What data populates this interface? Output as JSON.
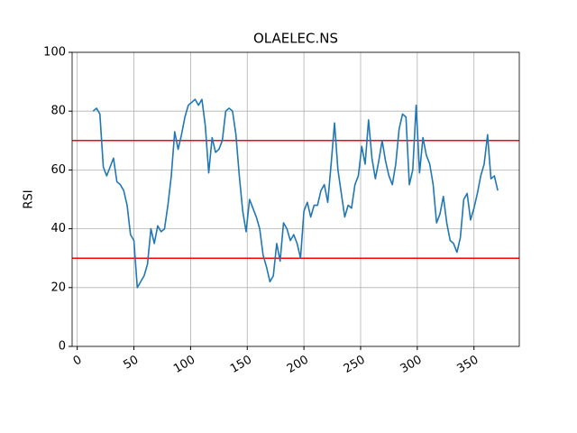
{
  "chart_data": {
    "type": "line",
    "title": "OLAELEC.NS",
    "y_label": "RSI",
    "x": [
      14,
      17,
      20,
      23,
      26,
      29,
      32,
      35,
      38,
      41,
      44,
      47,
      50,
      53,
      56,
      59,
      62,
      65,
      68,
      71,
      74,
      77,
      80,
      83,
      86,
      89,
      92,
      95,
      98,
      101,
      104,
      107,
      110,
      113,
      116,
      119,
      122,
      125,
      128,
      131,
      134,
      137,
      140,
      143,
      146,
      149,
      152,
      155,
      158,
      161,
      164,
      167,
      170,
      173,
      176,
      179,
      182,
      185,
      188,
      191,
      194,
      197,
      200,
      203,
      206,
      209,
      212,
      215,
      218,
      221,
      224,
      227,
      230,
      233,
      236,
      239,
      242,
      245,
      248,
      251,
      254,
      257,
      260,
      263,
      266,
      269,
      272,
      275,
      278,
      281,
      284,
      287,
      290,
      293,
      296,
      299,
      302,
      305,
      308,
      311,
      314,
      317,
      320,
      323,
      326,
      329,
      332,
      335,
      338,
      341,
      344,
      347,
      350,
      353,
      356,
      359,
      362,
      365,
      368,
      371
    ],
    "series": [
      {
        "color": "#1f77b4",
        "values": [
          80,
          81,
          79,
          61,
          58,
          61,
          64,
          56,
          55,
          53,
          48,
          38,
          36,
          20,
          22,
          24,
          28,
          40,
          35,
          41,
          39,
          40,
          48,
          58,
          73,
          67,
          72,
          78,
          82,
          83,
          84,
          82,
          84,
          75,
          59,
          71,
          66,
          67,
          70,
          80,
          81,
          80,
          72,
          58,
          46,
          39,
          50,
          47,
          44,
          40,
          31,
          27,
          22,
          24,
          35,
          29,
          42,
          40,
          36,
          38,
          35,
          30,
          46,
          49,
          44,
          48,
          48,
          53,
          55,
          49,
          62,
          76,
          60,
          52,
          44,
          48,
          47,
          55,
          58,
          68,
          62,
          77,
          64,
          57,
          63,
          70,
          63,
          58,
          55,
          62,
          74,
          79,
          78,
          55,
          60,
          82,
          59,
          71,
          65,
          62,
          55,
          42,
          45,
          51,
          42,
          36,
          35,
          32,
          37,
          50,
          52,
          43,
          47,
          52,
          58,
          62,
          72,
          57,
          58,
          53
        ]
      }
    ],
    "hlines": [
      {
        "value": 70,
        "color": "#ff0000"
      },
      {
        "value": 30,
        "color": "#ff0000"
      }
    ],
    "xlim": [
      -4.5,
      390
    ],
    "ylim": [
      0,
      100
    ],
    "xticks": [
      0,
      50,
      100,
      150,
      200,
      250,
      300,
      350
    ],
    "yticks": [
      0,
      20,
      40,
      60,
      80,
      100
    ],
    "grid": true
  }
}
